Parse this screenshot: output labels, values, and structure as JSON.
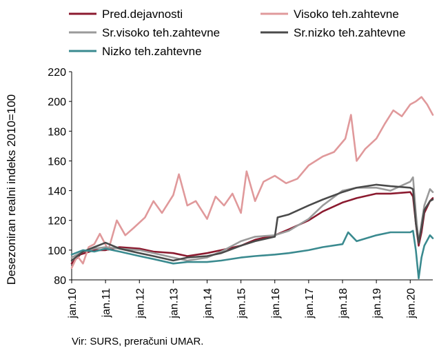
{
  "chart_data": {
    "type": "line",
    "ylabel": "Desezoniran realni indeks 2010=100",
    "xlabel": "",
    "ylim": [
      80,
      220
    ],
    "yticks": [
      80,
      100,
      120,
      140,
      160,
      180,
      200,
      220
    ],
    "x_range": [
      "2010-01",
      "2020-09"
    ],
    "x_tick_labels": [
      "jan.10",
      "jan.11",
      "jan.12",
      "jan.13",
      "jan.14",
      "jan.15",
      "jan.16",
      "jan.17",
      "jan.18",
      "jan.19",
      "jan.20"
    ],
    "grid": false,
    "legend_position": "top",
    "series": [
      {
        "name": "Pred.dejavnosti",
        "color": "#8b1a2f",
        "points": [
          [
            "2010-01",
            91
          ],
          [
            "2010-04",
            97
          ],
          [
            "2010-09",
            100
          ],
          [
            "2011-01",
            100
          ],
          [
            "2011-06",
            102
          ],
          [
            "2012-01",
            101
          ],
          [
            "2012-06",
            99
          ],
          [
            "2013-01",
            98
          ],
          [
            "2013-06",
            96
          ],
          [
            "2014-01",
            98
          ],
          [
            "2014-06",
            100
          ],
          [
            "2015-01",
            103
          ],
          [
            "2015-06",
            107
          ],
          [
            "2016-01",
            110
          ],
          [
            "2016-06",
            114
          ],
          [
            "2017-01",
            120
          ],
          [
            "2017-06",
            126
          ],
          [
            "2018-01",
            132
          ],
          [
            "2018-06",
            135
          ],
          [
            "2019-01",
            138
          ],
          [
            "2019-06",
            138
          ],
          [
            "2020-01",
            139
          ],
          [
            "2020-02",
            136
          ],
          [
            "2020-03",
            118
          ],
          [
            "2020-04",
            103
          ],
          [
            "2020-05",
            112
          ],
          [
            "2020-06",
            125
          ],
          [
            "2020-08",
            133
          ],
          [
            "2020-09",
            135
          ]
        ]
      },
      {
        "name": "Visoko teh.zahtevne",
        "color": "#e0999b",
        "points": [
          [
            "2010-01",
            88
          ],
          [
            "2010-03",
            96
          ],
          [
            "2010-05",
            91
          ],
          [
            "2010-07",
            102
          ],
          [
            "2010-09",
            104
          ],
          [
            "2010-11",
            111
          ],
          [
            "2011-02",
            100
          ],
          [
            "2011-05",
            120
          ],
          [
            "2011-08",
            110
          ],
          [
            "2011-11",
            115
          ],
          [
            "2012-03",
            122
          ],
          [
            "2012-06",
            133
          ],
          [
            "2012-09",
            125
          ],
          [
            "2013-01",
            137
          ],
          [
            "2013-03",
            151
          ],
          [
            "2013-06",
            130
          ],
          [
            "2013-09",
            133
          ],
          [
            "2014-01",
            121
          ],
          [
            "2014-04",
            136
          ],
          [
            "2014-07",
            130
          ],
          [
            "2014-10",
            138
          ],
          [
            "2015-01",
            125
          ],
          [
            "2015-03",
            153
          ],
          [
            "2015-06",
            133
          ],
          [
            "2015-09",
            146
          ],
          [
            "2016-01",
            150
          ],
          [
            "2016-05",
            145
          ],
          [
            "2016-09",
            148
          ],
          [
            "2017-01",
            157
          ],
          [
            "2017-06",
            163
          ],
          [
            "2017-10",
            166
          ],
          [
            "2018-02",
            175
          ],
          [
            "2018-04",
            191
          ],
          [
            "2018-06",
            160
          ],
          [
            "2018-09",
            168
          ],
          [
            "2019-01",
            175
          ],
          [
            "2019-04",
            185
          ],
          [
            "2019-07",
            194
          ],
          [
            "2019-10",
            190
          ],
          [
            "2020-01",
            198
          ],
          [
            "2020-03",
            200
          ],
          [
            "2020-05",
            203
          ],
          [
            "2020-07",
            198
          ],
          [
            "2020-09",
            191
          ]
        ]
      },
      {
        "name": "Sr.visoko teh.zahtevne",
        "color": "#9a9a9a",
        "points": [
          [
            "2010-01",
            95
          ],
          [
            "2010-05",
            99
          ],
          [
            "2010-09",
            101
          ],
          [
            "2011-01",
            102
          ],
          [
            "2011-06",
            101
          ],
          [
            "2012-01",
            100
          ],
          [
            "2012-06",
            98
          ],
          [
            "2013-01",
            95
          ],
          [
            "2013-06",
            93
          ],
          [
            "2014-01",
            95
          ],
          [
            "2014-06",
            99
          ],
          [
            "2015-01",
            106
          ],
          [
            "2015-06",
            109
          ],
          [
            "2016-01",
            110
          ],
          [
            "2016-06",
            113
          ],
          [
            "2017-01",
            121
          ],
          [
            "2017-06",
            130
          ],
          [
            "2018-01",
            140
          ],
          [
            "2018-06",
            142
          ],
          [
            "2019-01",
            142
          ],
          [
            "2019-06",
            140
          ],
          [
            "2020-01",
            146
          ],
          [
            "2020-02",
            149
          ],
          [
            "2020-03",
            125
          ],
          [
            "2020-04",
            105
          ],
          [
            "2020-05",
            118
          ],
          [
            "2020-06",
            130
          ],
          [
            "2020-08",
            141
          ],
          [
            "2020-09",
            139
          ]
        ]
      },
      {
        "name": "Sr.nizko teh.zahtevne",
        "color": "#4a4a4a",
        "points": [
          [
            "2010-01",
            93
          ],
          [
            "2010-05",
            99
          ],
          [
            "2010-09",
            102
          ],
          [
            "2011-01",
            105
          ],
          [
            "2011-06",
            101
          ],
          [
            "2012-01",
            98
          ],
          [
            "2012-06",
            96
          ],
          [
            "2013-01",
            93
          ],
          [
            "2013-06",
            95
          ],
          [
            "2014-01",
            96
          ],
          [
            "2014-06",
            98
          ],
          [
            "2015-01",
            103
          ],
          [
            "2015-06",
            106
          ],
          [
            "2016-01",
            109
          ],
          [
            "2016-02",
            122
          ],
          [
            "2016-06",
            124
          ],
          [
            "2017-01",
            130
          ],
          [
            "2017-06",
            134
          ],
          [
            "2018-01",
            139
          ],
          [
            "2018-06",
            142
          ],
          [
            "2019-01",
            144
          ],
          [
            "2019-06",
            143
          ],
          [
            "2020-01",
            142
          ],
          [
            "2020-02",
            141
          ],
          [
            "2020-03",
            118
          ],
          [
            "2020-04",
            105
          ],
          [
            "2020-05",
            115
          ],
          [
            "2020-06",
            127
          ],
          [
            "2020-08",
            133
          ],
          [
            "2020-09",
            134
          ]
        ]
      },
      {
        "name": "Nizko teh.zahtevne",
        "color": "#3a8a8f",
        "points": [
          [
            "2010-01",
            97
          ],
          [
            "2010-05",
            100
          ],
          [
            "2010-09",
            99
          ],
          [
            "2011-01",
            101
          ],
          [
            "2011-06",
            99
          ],
          [
            "2012-01",
            96
          ],
          [
            "2012-06",
            94
          ],
          [
            "2013-01",
            91
          ],
          [
            "2013-06",
            92
          ],
          [
            "2014-01",
            92
          ],
          [
            "2014-06",
            93
          ],
          [
            "2015-01",
            95
          ],
          [
            "2015-06",
            96
          ],
          [
            "2016-01",
            97
          ],
          [
            "2016-06",
            98
          ],
          [
            "2017-01",
            100
          ],
          [
            "2017-06",
            102
          ],
          [
            "2018-01",
            104
          ],
          [
            "2018-03",
            112
          ],
          [
            "2018-06",
            106
          ],
          [
            "2019-01",
            110
          ],
          [
            "2019-06",
            112
          ],
          [
            "2020-01",
            112
          ],
          [
            "2020-02",
            113
          ],
          [
            "2020-03",
            100
          ],
          [
            "2020-04",
            81
          ],
          [
            "2020-05",
            95
          ],
          [
            "2020-06",
            103
          ],
          [
            "2020-08",
            110
          ],
          [
            "2020-09",
            108
          ]
        ]
      }
    ]
  },
  "source_note": "Vir: SURS, preračuni UMAR."
}
